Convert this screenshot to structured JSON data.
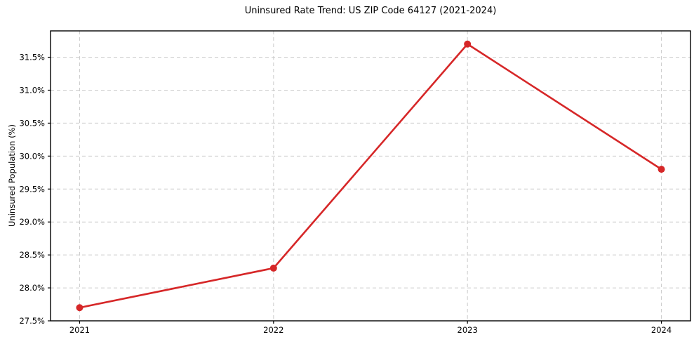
{
  "chart_data": {
    "type": "line",
    "title": "Uninsured Rate Trend: US ZIP Code 64127 (2021-2024)",
    "xlabel": "",
    "ylabel": "Uninsured Population (%)",
    "x": [
      2021,
      2022,
      2023,
      2024
    ],
    "values": [
      27.7,
      28.3,
      31.7,
      29.8
    ],
    "xtick_labels": [
      "2021",
      "2022",
      "2023",
      "2024"
    ],
    "ytick_values": [
      27.5,
      28.0,
      28.5,
      29.0,
      29.5,
      30.0,
      30.5,
      31.0,
      31.5
    ],
    "ytick_labels": [
      "27.5%",
      "28.0%",
      "28.5%",
      "29.0%",
      "29.5%",
      "30.0%",
      "30.5%",
      "31.0%",
      "31.5%"
    ],
    "xlim": [
      2020.85,
      2024.15
    ],
    "ylim": [
      27.5,
      31.9
    ],
    "grid": true,
    "legend_position": "none",
    "line_color": "#d62728",
    "grid_color": "#cccccc",
    "spine_color": "#000000"
  }
}
